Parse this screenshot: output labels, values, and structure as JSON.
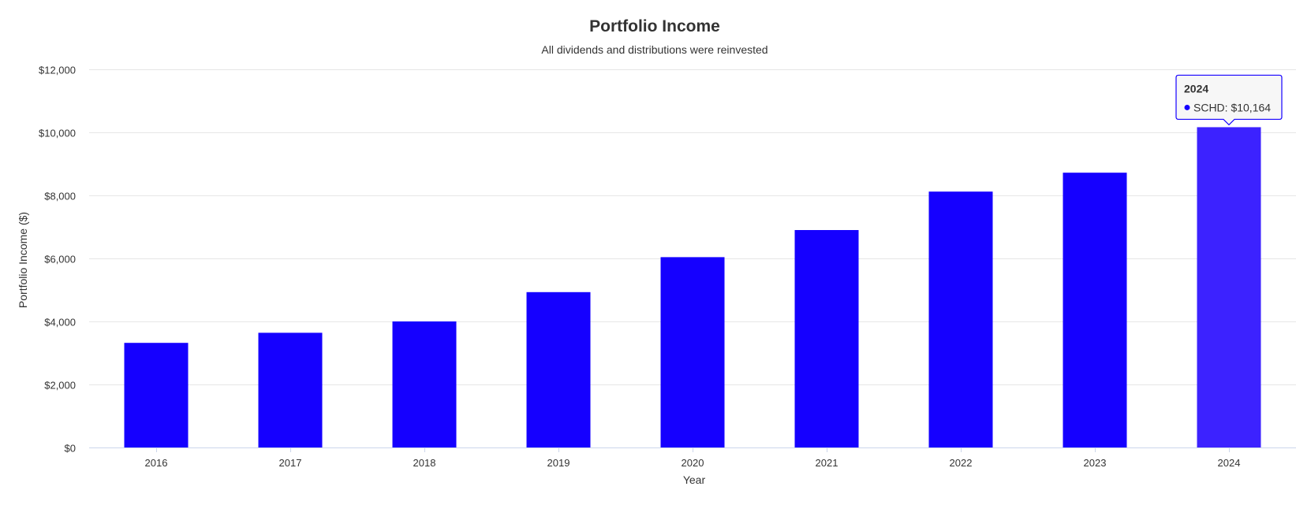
{
  "chart_data": {
    "type": "bar",
    "title": "Portfolio Income",
    "subtitle": "All dividends and distributions were reinvested",
    "xlabel": "Year",
    "ylabel": "Portfolio Income ($)",
    "categories": [
      "2016",
      "2017",
      "2018",
      "2019",
      "2020",
      "2021",
      "2022",
      "2023",
      "2024"
    ],
    "series": [
      {
        "name": "SCHD",
        "values": [
          3320,
          3640,
          4000,
          4930,
          6040,
          6900,
          8120,
          8720,
          10164
        ]
      }
    ],
    "ylim": [
      0,
      12000
    ],
    "yticks": [
      0,
      2000,
      4000,
      6000,
      8000,
      10000,
      12000
    ],
    "ytick_labels": [
      "$0",
      "$2,000",
      "$4,000",
      "$6,000",
      "$8,000",
      "$10,000",
      "$12,000"
    ],
    "grid": true,
    "legend": "none",
    "colors": {
      "bar": "#1500ff",
      "bar_hover": "#3c22ff",
      "grid": "#e6e6e6",
      "axis": "#ccd6eb",
      "tooltip_border": "#1500ff",
      "tooltip_bg": "#f7f7f7"
    },
    "tooltip": {
      "category": "2024",
      "series_name": "SCHD",
      "text": "SCHD: $10,164"
    }
  }
}
